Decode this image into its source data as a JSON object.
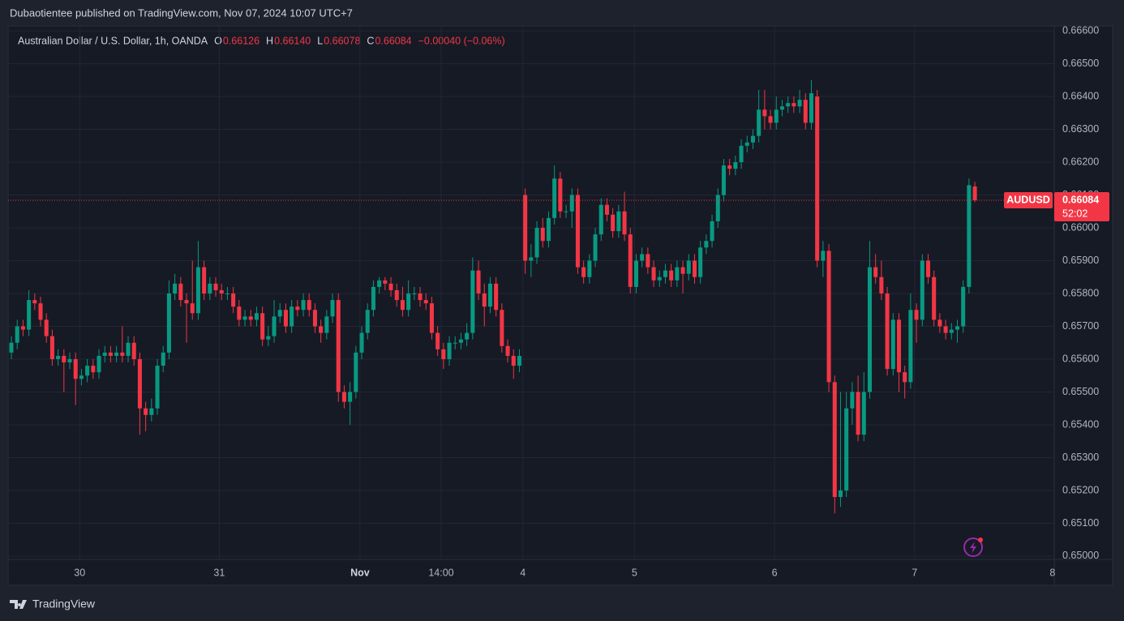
{
  "header": {
    "published": "Dubaotientee published on TradingView.com, Nov 07, 2024 10:07 UTC+7"
  },
  "footer": {
    "brand": "TradingView"
  },
  "chart_data": {
    "type": "candlestick",
    "legend": {
      "name": "Australian Dollar / U.S. Dollar, 1h, OANDA",
      "items": [
        {
          "label": "O",
          "value": "0.66126"
        },
        {
          "label": "H",
          "value": "0.66140"
        },
        {
          "label": "L",
          "value": "0.66078"
        },
        {
          "label": "C",
          "value": "0.66084"
        }
      ],
      "change": "−0.00040 (−0.06%)"
    },
    "price_tag": {
      "symbol": "AUDUSD",
      "value": 0.66084,
      "value_label": "0.66084",
      "countdown": "52:02"
    },
    "up_color": "#089981",
    "down_color": "#f23645",
    "grid": true,
    "xlim": [
      -0.28,
      178.6
    ],
    "xticks": [
      {
        "value": 11.7,
        "label": "30"
      },
      {
        "value": 35.6,
        "label": "31"
      },
      {
        "value": 59.7,
        "label": "Nov"
      },
      {
        "value": 73.6,
        "label": "14:00"
      },
      {
        "value": 87.6,
        "label": "4"
      },
      {
        "value": 106.7,
        "label": "5"
      },
      {
        "value": 130.7,
        "label": "6"
      },
      {
        "value": 154.7,
        "label": "7"
      },
      {
        "value": 178.3,
        "label": "8"
      }
    ],
    "ylim": [
      0.6499,
      0.66615
    ],
    "yticks": [
      {
        "value": 0.65,
        "label": "0.65000"
      },
      {
        "value": 0.651,
        "label": "0.65100"
      },
      {
        "value": 0.652,
        "label": "0.65200"
      },
      {
        "value": 0.653,
        "label": "0.65300"
      },
      {
        "value": 0.654,
        "label": "0.65400"
      },
      {
        "value": 0.655,
        "label": "0.65500"
      },
      {
        "value": 0.656,
        "label": "0.65600"
      },
      {
        "value": 0.657,
        "label": "0.65700"
      },
      {
        "value": 0.658,
        "label": "0.65800"
      },
      {
        "value": 0.659,
        "label": "0.65900"
      },
      {
        "value": 0.66,
        "label": "0.66000"
      },
      {
        "value": 0.661,
        "label": "0.66100"
      },
      {
        "value": 0.662,
        "label": "0.66200"
      },
      {
        "value": 0.663,
        "label": "0.66300"
      },
      {
        "value": 0.664,
        "label": "0.66400"
      },
      {
        "value": 0.665,
        "label": "0.66500"
      },
      {
        "value": 0.666,
        "label": "0.66600"
      }
    ],
    "open": [
      0.6562,
      0.6565,
      0.657,
      0.6569,
      0.6578,
      0.6577,
      0.6572,
      0.6567,
      0.656,
      0.6561,
      0.6559,
      0.656,
      0.6554,
      0.6555,
      0.6558,
      0.6556,
      0.6561,
      0.6562,
      0.6561,
      0.6562,
      0.6561,
      0.6565,
      0.656,
      0.6545,
      0.6543,
      0.6545,
      0.6558,
      0.6562,
      0.658,
      0.6583,
      0.6578,
      0.6577,
      0.6574,
      0.6588,
      0.658,
      0.6583,
      0.6581,
      0.658,
      0.658,
      0.6576,
      0.6572,
      0.6573,
      0.6572,
      0.6574,
      0.6566,
      0.6567,
      0.6573,
      0.6575,
      0.657,
      0.6576,
      0.6575,
      0.6578,
      0.6575,
      0.657,
      0.6568,
      0.6573,
      0.6578,
      0.655,
      0.6547,
      0.655,
      0.6562,
      0.6568,
      0.6575,
      0.6582,
      0.6584,
      0.6583,
      0.6581,
      0.6578,
      0.6575,
      0.658,
      0.658,
      0.6578,
      0.6577,
      0.6568,
      0.6563,
      0.656,
      0.6565,
      0.6565,
      0.6566,
      0.6568,
      0.6587,
      0.658,
      0.6576,
      0.6583,
      0.6575,
      0.6564,
      0.6561,
      0.6558,
      0.661,
      0.659,
      0.6591,
      0.66,
      0.6596,
      0.6603,
      0.6615,
      0.6605,
      0.6605,
      0.661,
      0.6588,
      0.6585,
      0.659,
      0.6598,
      0.6607,
      0.6604,
      0.6599,
      0.6605,
      0.6598,
      0.6582,
      0.659,
      0.6592,
      0.6588,
      0.6584,
      0.6585,
      0.6587,
      0.6584,
      0.6588,
      0.6586,
      0.659,
      0.6585,
      0.6594,
      0.6596,
      0.6602,
      0.661,
      0.6619,
      0.6618,
      0.662,
      0.6625,
      0.6626,
      0.6628,
      0.6636,
      0.6634,
      0.6632,
      0.6636,
      0.6637,
      0.6638,
      0.6637,
      0.6639,
      0.6632,
      0.664,
      0.659,
      0.6593,
      0.6553,
      0.6518,
      0.652,
      0.6545,
      0.655,
      0.6537,
      0.655,
      0.6588,
      0.6585,
      0.658,
      0.6557,
      0.6572,
      0.6556,
      0.6553,
      0.6575,
      0.6572,
      0.659,
      0.6585,
      0.6572,
      0.657,
      0.6568,
      0.6569,
      0.657,
      0.6582,
      0.66126
    ],
    "high": [
      0.6567,
      0.6572,
      0.6572,
      0.6581,
      0.658,
      0.6579,
      0.6574,
      0.6569,
      0.6563,
      0.6563,
      0.6562,
      0.6562,
      0.6557,
      0.656,
      0.656,
      0.6563,
      0.6564,
      0.6564,
      0.6564,
      0.657,
      0.6567,
      0.6567,
      0.6562,
      0.6547,
      0.6548,
      0.656,
      0.6564,
      0.6584,
      0.6586,
      0.6585,
      0.658,
      0.659,
      0.6596,
      0.659,
      0.6585,
      0.6585,
      0.6583,
      0.6582,
      0.6582,
      0.6578,
      0.6575,
      0.6575,
      0.6576,
      0.6576,
      0.657,
      0.6578,
      0.6577,
      0.6577,
      0.6578,
      0.6578,
      0.658,
      0.658,
      0.6577,
      0.6572,
      0.6575,
      0.658,
      0.658,
      0.6552,
      0.6553,
      0.6564,
      0.657,
      0.6577,
      0.6584,
      0.6585,
      0.6585,
      0.6585,
      0.6583,
      0.6582,
      0.6584,
      0.6582,
      0.6582,
      0.658,
      0.6579,
      0.657,
      0.6565,
      0.6567,
      0.6567,
      0.6568,
      0.6571,
      0.6591,
      0.659,
      0.6583,
      0.6585,
      0.6585,
      0.6577,
      0.6566,
      0.6563,
      0.6563,
      0.6612,
      0.6595,
      0.6602,
      0.6603,
      0.6605,
      0.6619,
      0.6617,
      0.6607,
      0.6612,
      0.6612,
      0.659,
      0.6592,
      0.66,
      0.6609,
      0.6609,
      0.6606,
      0.6607,
      0.6611,
      0.66,
      0.6592,
      0.6594,
      0.6594,
      0.659,
      0.6587,
      0.6589,
      0.6589,
      0.659,
      0.659,
      0.6592,
      0.6592,
      0.6596,
      0.6598,
      0.6604,
      0.6612,
      0.6621,
      0.6621,
      0.6622,
      0.6627,
      0.6628,
      0.663,
      0.6642,
      0.6642,
      0.6636,
      0.664,
      0.6639,
      0.664,
      0.664,
      0.6642,
      0.6641,
      0.6645,
      0.6642,
      0.6596,
      0.6595,
      0.6555,
      0.655,
      0.655,
      0.6553,
      0.6555,
      0.6556,
      0.6596,
      0.6592,
      0.659,
      0.6582,
      0.6574,
      0.6574,
      0.6558,
      0.658,
      0.6577,
      0.6592,
      0.6592,
      0.6587,
      0.6574,
      0.6572,
      0.6571,
      0.6572,
      0.6584,
      0.6615,
      0.6614
    ],
    "low": [
      0.656,
      0.6563,
      0.6567,
      0.6567,
      0.6575,
      0.657,
      0.6565,
      0.6558,
      0.6558,
      0.655,
      0.6557,
      0.6546,
      0.6552,
      0.6553,
      0.6554,
      0.6554,
      0.6559,
      0.6559,
      0.6559,
      0.6559,
      0.6559,
      0.6558,
      0.6537,
      0.6538,
      0.6541,
      0.6543,
      0.6556,
      0.656,
      0.6578,
      0.6576,
      0.6565,
      0.6572,
      0.6572,
      0.6578,
      0.6578,
      0.6579,
      0.6578,
      0.6578,
      0.6574,
      0.657,
      0.657,
      0.657,
      0.657,
      0.6564,
      0.6564,
      0.6565,
      0.6571,
      0.6568,
      0.6568,
      0.6573,
      0.6573,
      0.6573,
      0.6568,
      0.6565,
      0.6566,
      0.6571,
      0.6547,
      0.6545,
      0.654,
      0.6548,
      0.656,
      0.6566,
      0.6573,
      0.658,
      0.6581,
      0.6579,
      0.6576,
      0.6573,
      0.6573,
      0.6578,
      0.6576,
      0.6575,
      0.6566,
      0.6561,
      0.6557,
      0.6558,
      0.6563,
      0.6563,
      0.6564,
      0.6566,
      0.6578,
      0.657,
      0.6574,
      0.6573,
      0.6562,
      0.6559,
      0.6554,
      0.6556,
      0.6586,
      0.6585,
      0.6589,
      0.6594,
      0.6594,
      0.6601,
      0.6603,
      0.6603,
      0.66,
      0.6586,
      0.6583,
      0.6583,
      0.6588,
      0.6596,
      0.6602,
      0.6597,
      0.6597,
      0.6596,
      0.658,
      0.658,
      0.6588,
      0.6586,
      0.6582,
      0.6582,
      0.6583,
      0.6582,
      0.6582,
      0.658,
      0.6584,
      0.6583,
      0.6583,
      0.6592,
      0.6594,
      0.66,
      0.6608,
      0.6616,
      0.6616,
      0.6618,
      0.6623,
      0.6624,
      0.6626,
      0.663,
      0.663,
      0.663,
      0.6634,
      0.6635,
      0.6635,
      0.6635,
      0.663,
      0.663,
      0.6588,
      0.6585,
      0.655,
      0.6513,
      0.6515,
      0.6518,
      0.654,
      0.6535,
      0.6535,
      0.6548,
      0.6583,
      0.6578,
      0.6555,
      0.6555,
      0.655,
      0.6548,
      0.6551,
      0.6565,
      0.657,
      0.6583,
      0.657,
      0.6568,
      0.6566,
      0.6566,
      0.6565,
      0.6568,
      0.658,
      0.66078
    ],
    "close": [
      0.6565,
      0.657,
      0.6569,
      0.6578,
      0.6577,
      0.6572,
      0.6567,
      0.656,
      0.6561,
      0.6559,
      0.656,
      0.6554,
      0.6555,
      0.6558,
      0.6556,
      0.6561,
      0.6562,
      0.6561,
      0.6562,
      0.6561,
      0.6565,
      0.656,
      0.6545,
      0.6543,
      0.6545,
      0.6558,
      0.6562,
      0.658,
      0.6583,
      0.6578,
      0.6577,
      0.6574,
      0.6588,
      0.658,
      0.6583,
      0.6581,
      0.658,
      0.658,
      0.6576,
      0.6572,
      0.6573,
      0.6572,
      0.6574,
      0.6566,
      0.6567,
      0.6573,
      0.6575,
      0.657,
      0.6576,
      0.6575,
      0.6578,
      0.6575,
      0.657,
      0.6568,
      0.6573,
      0.6578,
      0.655,
      0.6547,
      0.655,
      0.6562,
      0.6568,
      0.6575,
      0.6582,
      0.6584,
      0.6583,
      0.6581,
      0.6578,
      0.6575,
      0.658,
      0.658,
      0.6578,
      0.6577,
      0.6568,
      0.6563,
      0.656,
      0.6565,
      0.6565,
      0.6566,
      0.6568,
      0.6587,
      0.658,
      0.6576,
      0.6583,
      0.6575,
      0.6564,
      0.6561,
      0.6558,
      0.6561,
      0.659,
      0.6591,
      0.66,
      0.6596,
      0.6603,
      0.6615,
      0.6605,
      0.6605,
      0.661,
      0.6588,
      0.6585,
      0.659,
      0.6598,
      0.6607,
      0.6604,
      0.6599,
      0.6605,
      0.6598,
      0.6582,
      0.659,
      0.6592,
      0.6588,
      0.6584,
      0.6585,
      0.6587,
      0.6584,
      0.6588,
      0.6586,
      0.659,
      0.6585,
      0.6594,
      0.6596,
      0.6602,
      0.661,
      0.6619,
      0.6618,
      0.662,
      0.6625,
      0.6626,
      0.6628,
      0.6636,
      0.6634,
      0.6632,
      0.6636,
      0.6637,
      0.6638,
      0.6637,
      0.6639,
      0.6632,
      0.6641,
      0.659,
      0.6593,
      0.6553,
      0.6518,
      0.652,
      0.6545,
      0.655,
      0.6537,
      0.655,
      0.6588,
      0.6585,
      0.658,
      0.6557,
      0.6572,
      0.6556,
      0.6553,
      0.6575,
      0.6572,
      0.659,
      0.6585,
      0.6572,
      0.657,
      0.6568,
      0.6569,
      0.657,
      0.6582,
      0.6613,
      0.66084
    ]
  }
}
